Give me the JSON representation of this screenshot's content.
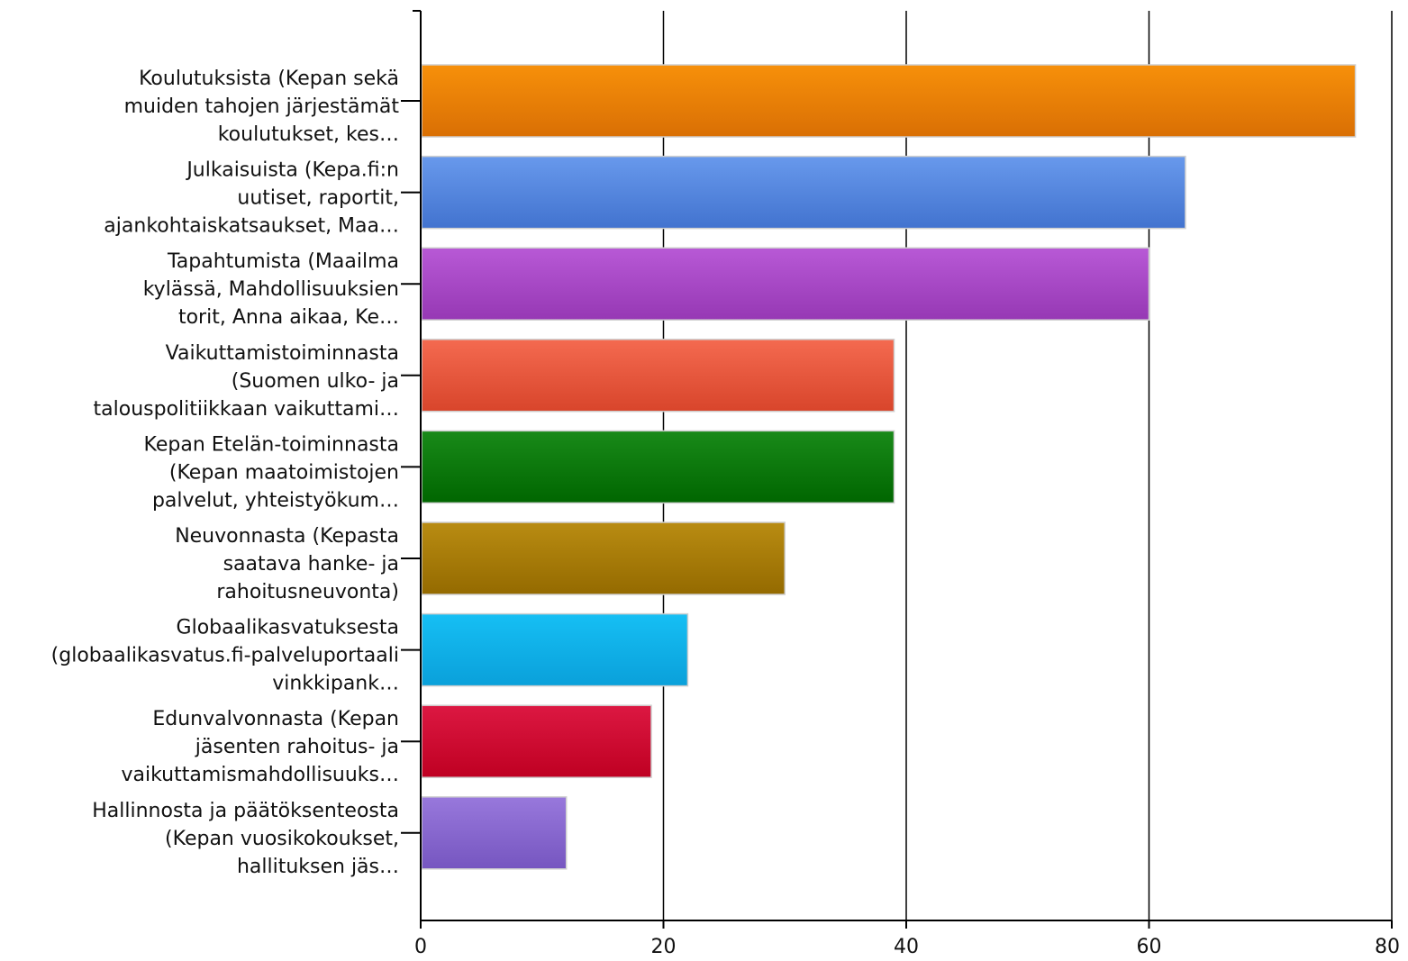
{
  "chart_data": {
    "type": "bar",
    "orientation": "horizontal",
    "title": "",
    "xlabel": "",
    "ylabel": "",
    "xlim": [
      0,
      80
    ],
    "x_ticks": [
      0,
      20,
      40,
      60,
      80
    ],
    "grid": "vertical lines",
    "legend": "none",
    "categories": [
      [
        "Koulutuksista (Kepan sekä",
        "muiden tahojen järjestämät",
        "koulutukset, kes…"
      ],
      [
        "Julkaisuista (Kepa.fi:n",
        "uutiset, raportit,",
        "ajankohtaiskatsaukset, Maa…"
      ],
      [
        "Tapahtumista (Maailma",
        "kylässä, Mahdollisuuksien",
        "torit, Anna aikaa, Ke…"
      ],
      [
        "Vaikuttamistoiminnasta",
        "(Suomen ulko- ja",
        "talouspolitiikkaan vaikuttami…"
      ],
      [
        "Kepan Etelän-toiminnasta",
        "(Kepan maatoimistojen",
        "palvelut, yhteistyökum…"
      ],
      [
        "Neuvonnasta (Kepasta",
        "saatava hanke- ja",
        "rahoitusneuvonta)"
      ],
      [
        "Globaalikasvatuksesta",
        "(globaalikasvatus.fi-palveluportaali",
        "vinkkipank…"
      ],
      [
        "Edunvalvonnasta (Kepan",
        "jäsenten rahoitus- ja",
        "vaikuttamismahdollisuuks…"
      ],
      [
        "Hallinnosta ja päätöksenteosta",
        "(Kepan vuosikokoukset,",
        "hallituksen jäs…"
      ]
    ],
    "values": [
      77,
      63,
      60,
      39,
      39,
      30,
      22,
      19,
      12
    ],
    "colors": [
      [
        "#f7900a",
        "#d96f04"
      ],
      [
        "#6899ec",
        "#4273cf"
      ],
      [
        "#b859d6",
        "#9638b4"
      ],
      [
        "#f46a50",
        "#d8452b"
      ],
      [
        "#198a19",
        "#006600"
      ],
      [
        "#b98c12",
        "#946a00"
      ],
      [
        "#16bff4",
        "#0aa0da"
      ],
      [
        "#dc1842",
        "#bf0022"
      ],
      [
        "#9878dc",
        "#7656c0"
      ]
    ]
  }
}
